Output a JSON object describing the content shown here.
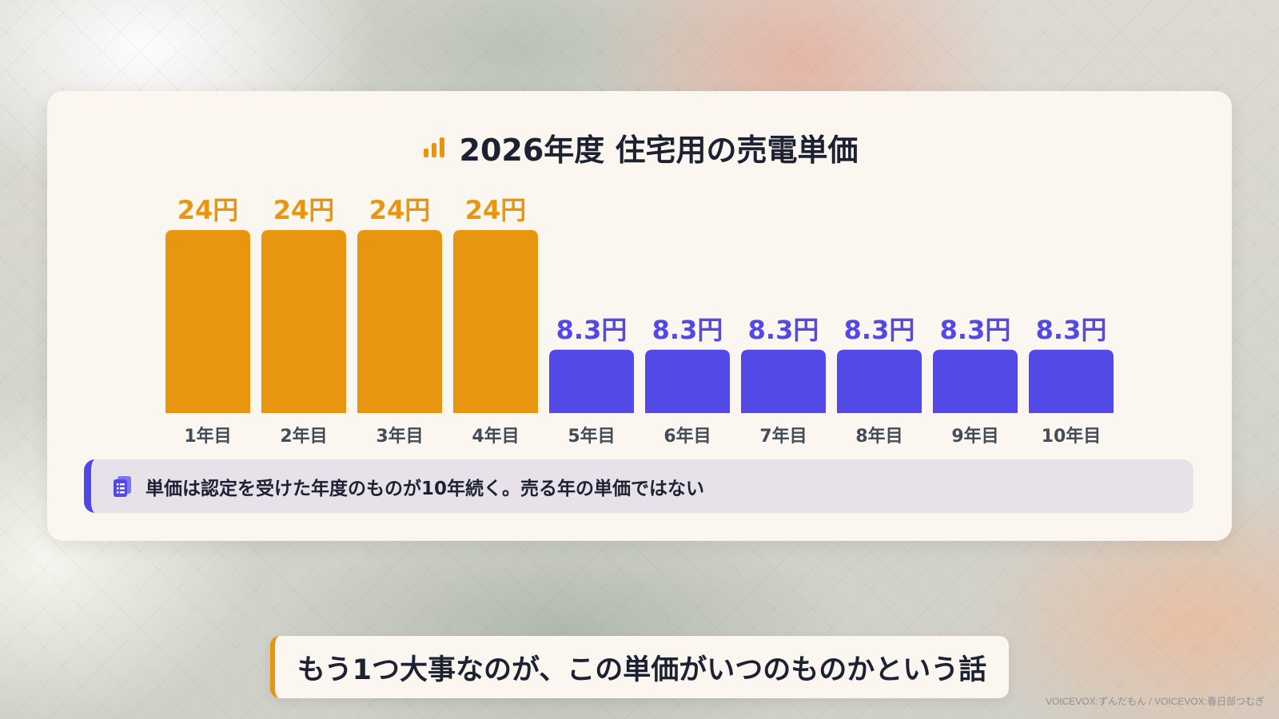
{
  "title": "2026年度 住宅用の売電単価",
  "title_icon": "bar-chart-icon",
  "colors": {
    "accent_orange": "#E8960F",
    "accent_purple": "#5249E6",
    "text_dark": "#1D2233",
    "axis_label": "#444B5A"
  },
  "chart_data": {
    "type": "bar",
    "title": "2026年度 住宅用の売電単価",
    "xlabel": "",
    "ylabel": "",
    "categories": [
      "1年目",
      "2年目",
      "3年目",
      "4年目",
      "5年目",
      "6年目",
      "7年目",
      "8年目",
      "9年目",
      "10年目"
    ],
    "values": [
      24,
      24,
      24,
      24,
      8.3,
      8.3,
      8.3,
      8.3,
      8.3,
      8.3
    ],
    "value_labels": [
      "24円",
      "24円",
      "24円",
      "24円",
      "8.3円",
      "8.3円",
      "8.3円",
      "8.3円",
      "8.3円",
      "8.3円"
    ],
    "bar_colors": [
      "#E8960F",
      "#E8960F",
      "#E8960F",
      "#E8960F",
      "#5249E6",
      "#5249E6",
      "#5249E6",
      "#5249E6",
      "#5249E6",
      "#5249E6"
    ],
    "ylim": [
      0,
      24
    ],
    "grid": false,
    "legend": "none"
  },
  "callout": {
    "icon": "clipboard-icon",
    "text": "単価は認定を受けた年度のものが10年続く。売る年の単価ではない"
  },
  "subtitle": "もう1つ大事なのが、この単価がいつのものかという話",
  "credit": "VOICEVOX:ずんだもん / VOICEVOX:春日部つむぎ"
}
